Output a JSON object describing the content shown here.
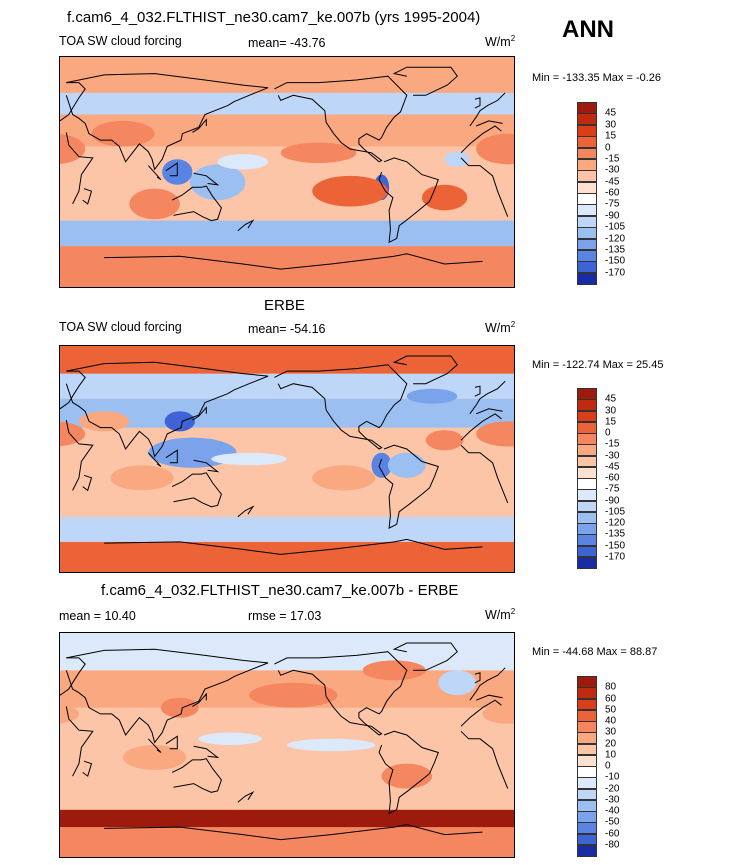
{
  "season": "ANN",
  "colors": {
    "pos": [
      "#fde0cf",
      "#fcc5a8",
      "#f9a880",
      "#f48660",
      "#ec6337",
      "#db3d16",
      "#c02a0f",
      "#9e1a0c",
      "#7a0c09"
    ],
    "neg": [
      "#ffffff",
      "#dce9fb",
      "#bed6f7",
      "#9cbff2",
      "#7ba3ec",
      "#5a84e3",
      "#3d63d5",
      "#2745bf",
      "#172ca2",
      "#0b1685",
      "#040c66"
    ],
    "coast": "#000000"
  },
  "panels": [
    {
      "title": "f.cam6_4_032.FLTHIST_ne30.cam7_ke.007b (yrs 1995-2004)",
      "variable": "TOA SW cloud forcing",
      "stat": "mean= -43.76",
      "units": "W/m",
      "units_exp": "2",
      "minmax": "Min = -133.35 Max =  -0.26",
      "colorbar": [
        "45",
        "30",
        "15",
        "0",
        "-15",
        "-30",
        "-45",
        "-60",
        "-75",
        "-90",
        "-105",
        "-120",
        "-135",
        "-150",
        "-170"
      ]
    },
    {
      "title": "ERBE",
      "variable": "TOA SW cloud forcing",
      "stat": "mean= -54.16",
      "units": "W/m",
      "units_exp": "2",
      "minmax": "Min = -122.74 Max =  25.45",
      "colorbar": [
        "45",
        "30",
        "15",
        "0",
        "-15",
        "-30",
        "-45",
        "-60",
        "-75",
        "-90",
        "-105",
        "-120",
        "-135",
        "-150",
        "-170"
      ]
    },
    {
      "title": "f.cam6_4_032.FLTHIST_ne30.cam7_ke.007b - ERBE",
      "variable": "mean =  10.40",
      "stat": "rmse =  17.03",
      "units": "W/m",
      "units_exp": "2",
      "minmax": "Min = -44.68 Max =  88.87",
      "colorbar": [
        "80",
        "60",
        "50",
        "40",
        "30",
        "20",
        "10",
        "0",
        "-10",
        "-20",
        "-30",
        "-40",
        "-50",
        "-60",
        "-80"
      ]
    }
  ]
}
